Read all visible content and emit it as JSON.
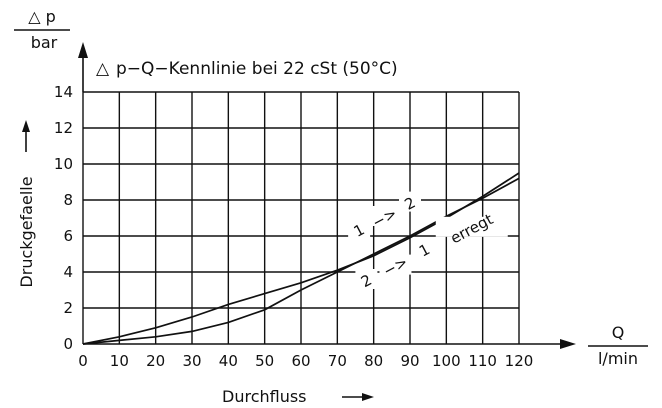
{
  "chart_data": {
    "type": "line",
    "title": "p−Q−Kennlinie bei 22 cSt (50°C)",
    "title_symbol": "△",
    "xlabel": "Durchfluss",
    "ylabel": "Druckgefaelle",
    "x_unit": {
      "top": "Q",
      "bottom": "l/min"
    },
    "y_unit": {
      "top": "△ p",
      "bottom": "bar"
    },
    "xlim": [
      0,
      120
    ],
    "ylim": [
      0,
      14
    ],
    "x_ticks": [
      0,
      10,
      20,
      30,
      40,
      50,
      60,
      70,
      80,
      90,
      100,
      110,
      120
    ],
    "y_ticks": [
      0,
      2,
      4,
      6,
      8,
      10,
      12,
      14
    ],
    "x_tick_labels": [
      "0",
      "10",
      "20",
      "30",
      "40",
      "50",
      "60",
      "70",
      "80",
      "90",
      "100",
      "110",
      "120"
    ],
    "y_tick_labels": [
      "0",
      "2",
      "4",
      "6",
      "8",
      "10",
      "12",
      "14"
    ],
    "grid": true,
    "series": [
      {
        "name": "1 -> 2",
        "x": [
          0,
          10,
          20,
          30,
          40,
          50,
          60,
          70,
          80,
          90,
          100,
          110,
          120
        ],
        "y": [
          0,
          0.4,
          0.9,
          1.5,
          2.2,
          2.8,
          3.4,
          4.1,
          4.9,
          5.9,
          7.0,
          8.2,
          9.5
        ]
      },
      {
        "name": "2 -> 1 erregt",
        "x": [
          0,
          10,
          20,
          30,
          40,
          50,
          60,
          70,
          80,
          90,
          100,
          110,
          120
        ],
        "y": [
          0,
          0.2,
          0.4,
          0.7,
          1.2,
          1.9,
          3.0,
          4.0,
          5.0,
          6.0,
          7.1,
          8.1,
          9.2
        ]
      }
    ],
    "annotations": [
      {
        "text": "1",
        "x": 76,
        "y": 6.3
      },
      {
        "text": "−>",
        "x": 83,
        "y": 7.0
      },
      {
        "text": "2",
        "x": 90,
        "y": 7.8
      },
      {
        "text": "2",
        "x": 78,
        "y": 3.5
      },
      {
        "text": "−>",
        "x": 86,
        "y": 4.3
      },
      {
        "text": "1",
        "x": 94,
        "y": 5.2
      },
      {
        "text": "erregt",
        "x": 107,
        "y": 6.4
      }
    ]
  }
}
